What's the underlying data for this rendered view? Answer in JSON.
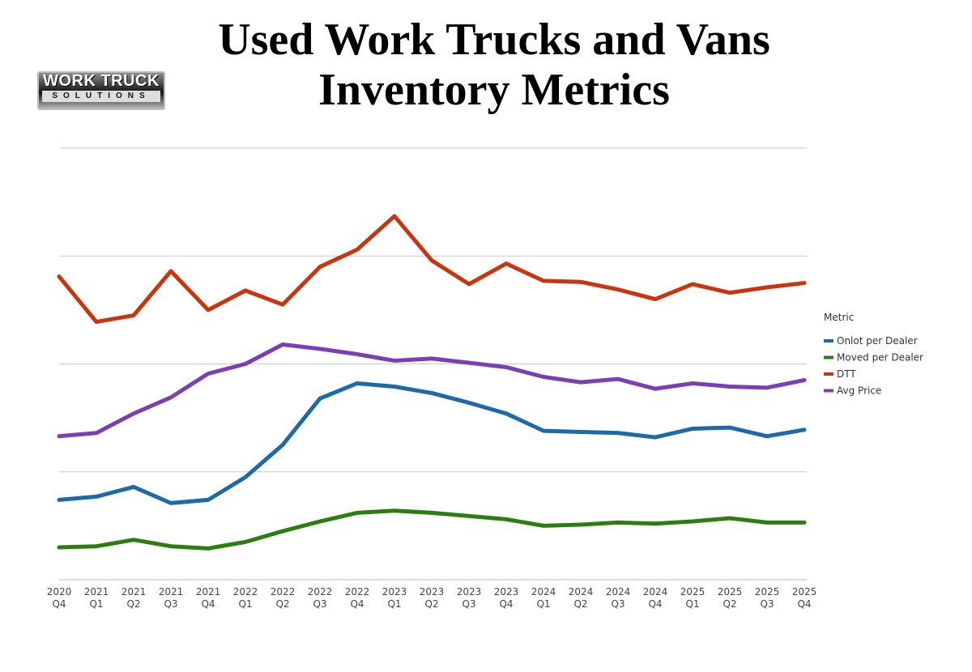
{
  "logo": {
    "line1": "WORK TRUCK",
    "line2": "SOLUTIONS"
  },
  "chart_data": {
    "type": "line",
    "title": "Used Work Trucks and Vans Inventory Metrics",
    "title_lines": [
      "Used Work Trucks and Vans",
      "Inventory Metrics"
    ],
    "xlabel": "",
    "ylabel": "",
    "y_units": "relative (gridline spacing = 1; no y-axis labels shown)",
    "ylim": [
      0,
      4
    ],
    "grid": true,
    "legend_title": "Metric",
    "legend_position": "right",
    "categories": [
      [
        "2020",
        "Q4"
      ],
      [
        "2021",
        "Q1"
      ],
      [
        "2021",
        "Q2"
      ],
      [
        "2021",
        "Q3"
      ],
      [
        "2021",
        "Q4"
      ],
      [
        "2022",
        "Q1"
      ],
      [
        "2022",
        "Q2"
      ],
      [
        "2022",
        "Q3"
      ],
      [
        "2022",
        "Q4"
      ],
      [
        "2023",
        "Q1"
      ],
      [
        "2023",
        "Q2"
      ],
      [
        "2023",
        "Q3"
      ],
      [
        "2023",
        "Q4"
      ],
      [
        "2024",
        "Q1"
      ],
      [
        "2024",
        "Q2"
      ],
      [
        "2024",
        "Q3"
      ],
      [
        "2024",
        "Q4"
      ],
      [
        "2025",
        "Q1"
      ],
      [
        "2025",
        "Q2"
      ],
      [
        "2025",
        "Q3"
      ],
      [
        "2025",
        "Q4"
      ]
    ],
    "series": [
      {
        "name": "Onlot per Dealer",
        "color": "#1c6aa8",
        "values": [
          0.74,
          0.77,
          0.86,
          0.71,
          0.74,
          0.95,
          1.25,
          1.68,
          1.82,
          1.79,
          1.73,
          1.64,
          1.54,
          1.38,
          1.37,
          1.36,
          1.32,
          1.4,
          1.41,
          1.33,
          1.39
        ]
      },
      {
        "name": "Moved per Dealer",
        "color": "#2e7d12",
        "values": [
          0.3,
          0.31,
          0.37,
          0.31,
          0.29,
          0.35,
          0.45,
          0.54,
          0.62,
          0.64,
          0.62,
          0.59,
          0.56,
          0.5,
          0.51,
          0.53,
          0.52,
          0.54,
          0.57,
          0.53,
          0.53
        ]
      },
      {
        "name": "DTT",
        "color": "#c8360f",
        "values": [
          2.81,
          2.39,
          2.45,
          2.86,
          2.5,
          2.68,
          2.55,
          2.9,
          3.06,
          3.37,
          2.96,
          2.74,
          2.93,
          2.77,
          2.76,
          2.69,
          2.6,
          2.74,
          2.66,
          2.71,
          2.75
        ]
      },
      {
        "name": "Avg Price",
        "color": "#7b3fb3",
        "values": [
          1.33,
          1.36,
          1.54,
          1.69,
          1.91,
          2.0,
          2.18,
          2.14,
          2.09,
          2.03,
          2.05,
          2.01,
          1.97,
          1.88,
          1.83,
          1.86,
          1.77,
          1.82,
          1.79,
          1.78,
          1.85
        ]
      }
    ]
  }
}
